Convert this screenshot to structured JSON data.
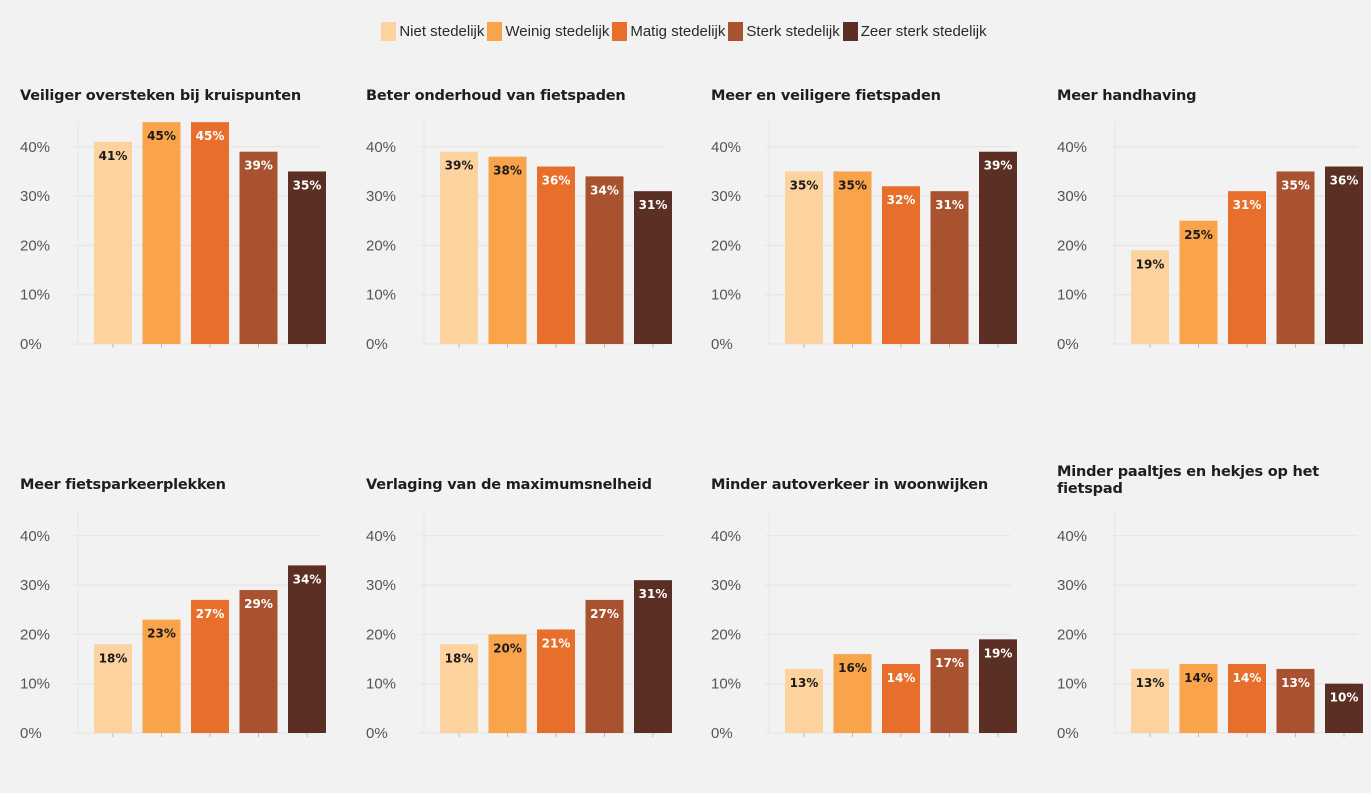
{
  "legend": {
    "items": [
      {
        "label": "Niet stedelijk",
        "color": "#fcd29f"
      },
      {
        "label": "Weinig stedelijk",
        "color": "#f9a34a"
      },
      {
        "label": "Matig stedelijk",
        "color": "#e86f2b"
      },
      {
        "label": "Sterk stedelijk",
        "color": "#a8522f"
      },
      {
        "label": "Zeer sterk stedelijk",
        "color": "#5c2f25"
      }
    ]
  },
  "chart_data": [
    {
      "type": "bar",
      "title": "Veiliger oversteken bij kruispunten",
      "categories": [
        "Niet stedelijk",
        "Weinig stedelijk",
        "Matig stedelijk",
        "Sterk stedelijk",
        "Zeer sterk stedelijk"
      ],
      "values": [
        41,
        45,
        45,
        39,
        35
      ],
      "value_labels": [
        "41%",
        "45%",
        "45%",
        "39%",
        "35%"
      ],
      "yticks": [
        "0%",
        "10%",
        "20%",
        "30%",
        "40%"
      ],
      "ylim": [
        0,
        45
      ]
    },
    {
      "type": "bar",
      "title": "Beter onderhoud van fietspaden",
      "categories": [
        "Niet stedelijk",
        "Weinig stedelijk",
        "Matig stedelijk",
        "Sterk stedelijk",
        "Zeer sterk stedelijk"
      ],
      "values": [
        39,
        38,
        36,
        34,
        31
      ],
      "value_labels": [
        "39%",
        "38%",
        "36%",
        "34%",
        "31%"
      ],
      "yticks": [
        "0%",
        "10%",
        "20%",
        "30%",
        "40%"
      ],
      "ylim": [
        0,
        45
      ]
    },
    {
      "type": "bar",
      "title": "Meer en veiligere fietspaden",
      "categories": [
        "Niet stedelijk",
        "Weinig stedelijk",
        "Matig stedelijk",
        "Sterk stedelijk",
        "Zeer sterk stedelijk"
      ],
      "values": [
        35,
        35,
        32,
        31,
        39
      ],
      "value_labels": [
        "35%",
        "35%",
        "32%",
        "31%",
        "39%"
      ],
      "yticks": [
        "0%",
        "10%",
        "20%",
        "30%",
        "40%"
      ],
      "ylim": [
        0,
        45
      ]
    },
    {
      "type": "bar",
      "title": "Meer handhaving",
      "categories": [
        "Niet stedelijk",
        "Weinig stedelijk",
        "Matig stedelijk",
        "Sterk stedelijk",
        "Zeer sterk stedelijk"
      ],
      "values": [
        19,
        25,
        31,
        35,
        36
      ],
      "value_labels": [
        "19%",
        "25%",
        "31%",
        "35%",
        "36%"
      ],
      "yticks": [
        "0%",
        "10%",
        "20%",
        "30%",
        "40%"
      ],
      "ylim": [
        0,
        45
      ]
    },
    {
      "type": "bar",
      "title": "Meer fietsparkeerplekken",
      "categories": [
        "Niet stedelijk",
        "Weinig stedelijk",
        "Matig stedelijk",
        "Sterk stedelijk",
        "Zeer sterk stedelijk"
      ],
      "values": [
        18,
        23,
        27,
        29,
        34
      ],
      "value_labels": [
        "18%",
        "23%",
        "27%",
        "29%",
        "34%"
      ],
      "yticks": [
        "0%",
        "10%",
        "20%",
        "30%",
        "40%"
      ],
      "ylim": [
        0,
        45
      ]
    },
    {
      "type": "bar",
      "title": "Verlaging van de maximumsnelheid",
      "categories": [
        "Niet stedelijk",
        "Weinig stedelijk",
        "Matig stedelijk",
        "Sterk stedelijk",
        "Zeer sterk stedelijk"
      ],
      "values": [
        18,
        20,
        21,
        27,
        31
      ],
      "value_labels": [
        "18%",
        "20%",
        "21%",
        "27%",
        "31%"
      ],
      "yticks": [
        "0%",
        "10%",
        "20%",
        "30%",
        "40%"
      ],
      "ylim": [
        0,
        45
      ]
    },
    {
      "type": "bar",
      "title": "Minder autoverkeer in woonwijken",
      "categories": [
        "Niet stedelijk",
        "Weinig stedelijk",
        "Matig stedelijk",
        "Sterk stedelijk",
        "Zeer sterk stedelijk"
      ],
      "values": [
        13,
        16,
        14,
        17,
        19
      ],
      "value_labels": [
        "13%",
        "16%",
        "14%",
        "17%",
        "19%"
      ],
      "yticks": [
        "0%",
        "10%",
        "20%",
        "30%",
        "40%"
      ],
      "ylim": [
        0,
        45
      ]
    },
    {
      "type": "bar",
      "title": "Minder paaltjes en hekjes op het fietspad",
      "categories": [
        "Niet stedelijk",
        "Weinig stedelijk",
        "Matig stedelijk",
        "Sterk stedelijk",
        "Zeer sterk stedelijk"
      ],
      "values": [
        13,
        14,
        14,
        13,
        10
      ],
      "value_labels": [
        "13%",
        "14%",
        "14%",
        "13%",
        "10%"
      ],
      "yticks": [
        "0%",
        "10%",
        "20%",
        "30%",
        "40%"
      ],
      "ylim": [
        0,
        45
      ]
    }
  ]
}
